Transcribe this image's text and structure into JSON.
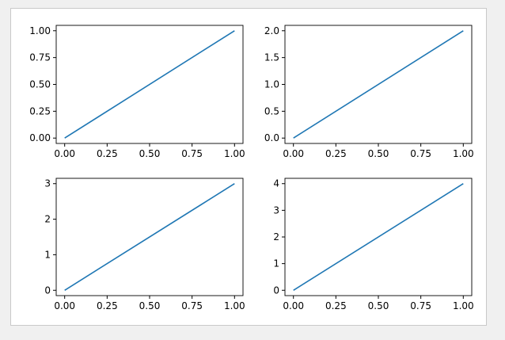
{
  "colors": {
    "page_background": "#f0f0f0",
    "figure_background": "#ffffff",
    "figure_border": "#c9c9c9",
    "line": "#1f77b4",
    "axis": "#000000"
  },
  "chart_data": [
    {
      "type": "line",
      "title": "",
      "xlabel": "",
      "ylabel": "",
      "xlim": [
        0,
        1
      ],
      "ylim": [
        0,
        1
      ],
      "xticks": [
        "0.00",
        "0.25",
        "0.50",
        "0.75",
        "1.00"
      ],
      "yticks": [
        "0.00",
        "0.25",
        "0.50",
        "0.75",
        "1.00"
      ],
      "series": [
        {
          "x": [
            0,
            1
          ],
          "y": [
            0,
            1
          ]
        }
      ],
      "grid": false,
      "legend": "none"
    },
    {
      "type": "line",
      "title": "",
      "xlabel": "",
      "ylabel": "",
      "xlim": [
        0,
        1
      ],
      "ylim": [
        0,
        2
      ],
      "xticks": [
        "0.00",
        "0.25",
        "0.50",
        "0.75",
        "1.00"
      ],
      "yticks": [
        "0.0",
        "0.5",
        "1.0",
        "1.5",
        "2.0"
      ],
      "series": [
        {
          "x": [
            0,
            1
          ],
          "y": [
            0,
            2
          ]
        }
      ],
      "grid": false,
      "legend": "none"
    },
    {
      "type": "line",
      "title": "",
      "xlabel": "",
      "ylabel": "",
      "xlim": [
        0,
        1
      ],
      "ylim": [
        0,
        3
      ],
      "xticks": [
        "0.00",
        "0.25",
        "0.50",
        "0.75",
        "1.00"
      ],
      "yticks": [
        "0",
        "1",
        "2",
        "3"
      ],
      "series": [
        {
          "x": [
            0,
            1
          ],
          "y": [
            0,
            3
          ]
        }
      ],
      "grid": false,
      "legend": "none"
    },
    {
      "type": "line",
      "title": "",
      "xlabel": "",
      "ylabel": "",
      "xlim": [
        0,
        1
      ],
      "ylim": [
        0,
        4
      ],
      "xticks": [
        "0.00",
        "0.25",
        "0.50",
        "0.75",
        "1.00"
      ],
      "yticks": [
        "0",
        "1",
        "2",
        "3",
        "4"
      ],
      "series": [
        {
          "x": [
            0,
            1
          ],
          "y": [
            0,
            4
          ]
        }
      ],
      "grid": false,
      "legend": "none"
    }
  ]
}
